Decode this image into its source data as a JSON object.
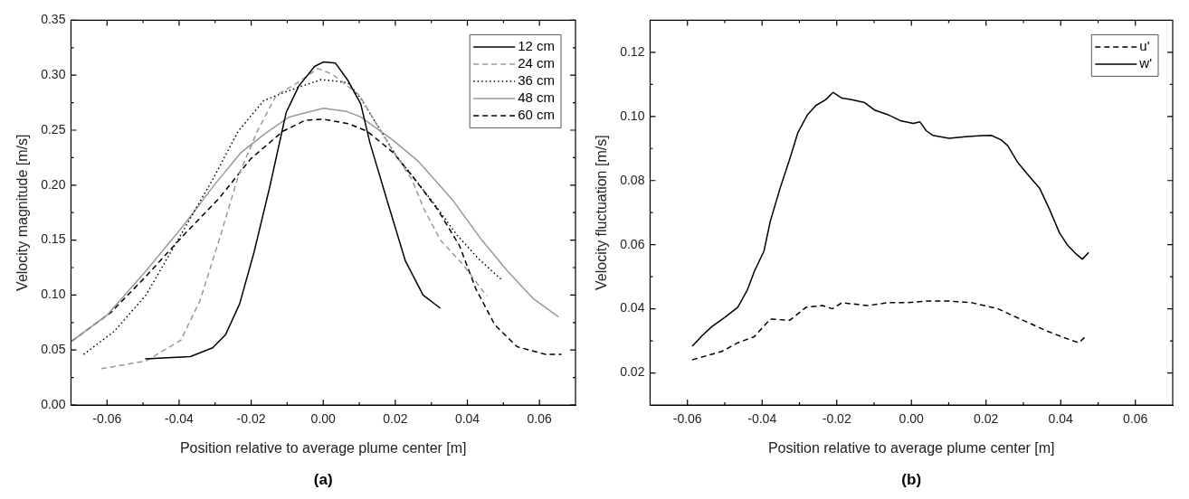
{
  "chart_data": [
    {
      "type": "line",
      "xlabel": "Position relative to average plume center [m]",
      "ylabel": "Velocity magnitude [m/s]",
      "annotations": [
        "(a)"
      ],
      "legend": "top right",
      "grid": false,
      "xlim": [
        -0.07,
        0.07
      ],
      "ylim": [
        0,
        0.35
      ],
      "xticks": [
        {
          "value": -0.06,
          "label": "-0.06"
        },
        {
          "value": -0.05,
          "label": null
        },
        {
          "value": -0.04,
          "label": "-0.04"
        },
        {
          "value": -0.03,
          "label": null
        },
        {
          "value": -0.02,
          "label": "-0.02"
        },
        {
          "value": -0.01,
          "label": null
        },
        {
          "value": 0,
          "label": "0.00"
        },
        {
          "value": 0.01,
          "label": null
        },
        {
          "value": 0.02,
          "label": "0.02"
        },
        {
          "value": 0.03,
          "label": null
        },
        {
          "value": 0.04,
          "label": "0.04"
        },
        {
          "value": 0.05,
          "label": null
        },
        {
          "value": 0.06,
          "label": "0.06"
        }
      ],
      "yticks": [
        {
          "value": 0,
          "label": "0.00"
        },
        {
          "value": 0.025,
          "label": null
        },
        {
          "value": 0.05,
          "label": "0.05"
        },
        {
          "value": 0.075,
          "label": null
        },
        {
          "value": 0.1,
          "label": "0.10"
        },
        {
          "value": 0.125,
          "label": null
        },
        {
          "value": 0.15,
          "label": "0.15"
        },
        {
          "value": 0.175,
          "label": null
        },
        {
          "value": 0.2,
          "label": "0.20"
        },
        {
          "value": 0.225,
          "label": null
        },
        {
          "value": 0.25,
          "label": "0.25"
        },
        {
          "value": 0.275,
          "label": null
        },
        {
          "value": 0.3,
          "label": "0.30"
        },
        {
          "value": 0.325,
          "label": null
        },
        {
          "value": 0.35,
          "label": "0.35"
        }
      ],
      "series": [
        {
          "name": "12 cm",
          "color": "#000000",
          "line_style": "solid",
          "x": [
            -0.0494,
            -0.0369,
            -0.0307,
            -0.0271,
            -0.0232,
            -0.0192,
            -0.0148,
            -0.0103,
            -0.0068,
            -0.0024,
            0,
            0.0034,
            0.0069,
            0.0104,
            0.013,
            0.018,
            0.0228,
            0.0277,
            0.0325
          ],
          "values": [
            0.042,
            0.044,
            0.052,
            0.064,
            0.092,
            0.139,
            0.199,
            0.266,
            0.29,
            0.308,
            0.312,
            0.311,
            0.295,
            0.274,
            0.238,
            0.183,
            0.131,
            0.1,
            0.088
          ]
        },
        {
          "name": "24 cm",
          "color": "#999999",
          "line_style": "dashed",
          "x": [
            -0.0616,
            -0.0492,
            -0.0395,
            -0.0342,
            -0.0289,
            -0.0236,
            -0.0183,
            -0.013,
            -0.0077,
            -0.0015,
            0.0025,
            0.01,
            0.0149,
            0.0202,
            0.0246,
            0.028,
            0.0325,
            0.0387,
            0.0454
          ],
          "values": [
            0.033,
            0.04,
            0.059,
            0.095,
            0.15,
            0.208,
            0.249,
            0.282,
            0.292,
            0.306,
            0.301,
            0.282,
            0.255,
            0.227,
            0.205,
            0.178,
            0.15,
            0.128,
            0.099
          ]
        },
        {
          "name": "36 cm",
          "color": "#000000",
          "line_style": "dotted",
          "x": [
            -0.0665,
            -0.058,
            -0.0492,
            -0.0395,
            -0.0307,
            -0.0236,
            -0.0165,
            -0.0095,
            -0.0006,
            0.0025,
            0.0069,
            0.0104,
            0.0149,
            0.0202,
            0.0255,
            0.0308,
            0.037,
            0.0431,
            0.0498
          ],
          "values": [
            0.046,
            0.067,
            0.1,
            0.155,
            0.205,
            0.249,
            0.277,
            0.286,
            0.296,
            0.295,
            0.293,
            0.279,
            0.255,
            0.227,
            0.205,
            0.183,
            0.155,
            0.133,
            0.113
          ]
        },
        {
          "name": "48 cm",
          "color": "#999999",
          "line_style": "solid",
          "x": [
            -0.0698,
            -0.0599,
            -0.0492,
            -0.0386,
            -0.0298,
            -0.0227,
            -0.0165,
            -0.0095,
            0,
            0.0065,
            0.0104,
            0.0193,
            0.0263,
            0.036,
            0.044,
            0.0511,
            0.0582,
            0.0653
          ],
          "values": [
            0.058,
            0.082,
            0.122,
            0.164,
            0.202,
            0.23,
            0.246,
            0.262,
            0.27,
            0.267,
            0.262,
            0.241,
            0.222,
            0.186,
            0.15,
            0.122,
            0.097,
            0.08
          ]
        },
        {
          "name": "60 cm",
          "color": "#000000",
          "line_style": "dashed",
          "x": [
            -0.0698,
            -0.059,
            -0.0492,
            -0.0386,
            -0.0289,
            -0.0201,
            -0.0112,
            -0.005,
            0,
            0.0069,
            0.0122,
            0.0193,
            0.0255,
            0.0317,
            0.0378,
            0.0423,
            0.0476,
            0.0538,
            0.0617,
            0.0661
          ],
          "values": [
            0.058,
            0.084,
            0.117,
            0.155,
            0.188,
            0.224,
            0.249,
            0.259,
            0.26,
            0.256,
            0.249,
            0.23,
            0.205,
            0.178,
            0.145,
            0.106,
            0.073,
            0.053,
            0.046,
            0.046
          ]
        }
      ]
    },
    {
      "type": "line",
      "xlabel": "Position relative to average plume center [m]",
      "ylabel": "Velocity fluctuation [m/s]",
      "annotations": [
        "(b)"
      ],
      "legend": "top right",
      "grid": false,
      "xlim": [
        -0.07,
        0.07
      ],
      "ylim": [
        0.01,
        0.13
      ],
      "xticks": [
        {
          "value": -0.06,
          "label": "-0.06"
        },
        {
          "value": -0.05,
          "label": null
        },
        {
          "value": -0.04,
          "label": "-0.04"
        },
        {
          "value": -0.03,
          "label": null
        },
        {
          "value": -0.02,
          "label": "-0.02"
        },
        {
          "value": -0.01,
          "label": null
        },
        {
          "value": 0,
          "label": "0.00"
        },
        {
          "value": 0.01,
          "label": null
        },
        {
          "value": 0.02,
          "label": "0.02"
        },
        {
          "value": 0.03,
          "label": null
        },
        {
          "value": 0.04,
          "label": "0.04"
        },
        {
          "value": 0.05,
          "label": null
        },
        {
          "value": 0.06,
          "label": "0.06"
        }
      ],
      "yticks": [
        {
          "value": 0.02,
          "label": "0.02"
        },
        {
          "value": 0.03,
          "label": null
        },
        {
          "value": 0.04,
          "label": "0.04"
        },
        {
          "value": 0.05,
          "label": null
        },
        {
          "value": 0.06,
          "label": "0.06"
        },
        {
          "value": 0.07,
          "label": null
        },
        {
          "value": 0.08,
          "label": "0.08"
        },
        {
          "value": 0.09,
          "label": null
        },
        {
          "value": 0.1,
          "label": "0.10"
        },
        {
          "value": 0.11,
          "label": null
        },
        {
          "value": 0.12,
          "label": "0.12"
        }
      ],
      "series": [
        {
          "name": "u'",
          "color": "#000000",
          "line_style": "dashed",
          "x": [
            -0.0587,
            -0.0508,
            -0.0465,
            -0.0421,
            -0.0378,
            -0.0326,
            -0.0282,
            -0.0238,
            -0.0212,
            -0.0186,
            -0.0117,
            -0.0064,
            -0.0012,
            0.004,
            0.0101,
            0.0162,
            0.0232,
            0.0292,
            0.0362,
            0.0414,
            0.0449,
            0.0466
          ],
          "values": [
            0.0241,
            0.0267,
            0.0294,
            0.0313,
            0.0368,
            0.0364,
            0.0405,
            0.041,
            0.04,
            0.0419,
            0.041,
            0.0419,
            0.0419,
            0.0424,
            0.0424,
            0.0419,
            0.04,
            0.0368,
            0.0331,
            0.0308,
            0.0294,
            0.0313
          ]
        },
        {
          "name": "w'",
          "color": "#000000",
          "line_style": "solid",
          "x": [
            -0.0587,
            -0.056,
            -0.0534,
            -0.05,
            -0.0465,
            -0.0439,
            -0.0421,
            -0.0395,
            -0.0378,
            -0.0352,
            -0.0326,
            -0.0304,
            -0.0278,
            -0.0256,
            -0.023,
            -0.021,
            -0.0186,
            -0.016,
            -0.0125,
            -0.0099,
            -0.0064,
            -0.003,
            0.0005,
            0.0023,
            0.004,
            0.0057,
            0.0101,
            0.0144,
            0.0188,
            0.0214,
            0.024,
            0.0258,
            0.0284,
            0.031,
            0.0344,
            0.037,
            0.0397,
            0.0418,
            0.044,
            0.0458,
            0.0475
          ],
          "values": [
            0.0283,
            0.0317,
            0.0345,
            0.0373,
            0.0405,
            0.046,
            0.0516,
            0.058,
            0.0673,
            0.0775,
            0.0867,
            0.095,
            0.1006,
            0.1034,
            0.1052,
            0.1075,
            0.1057,
            0.1052,
            0.1043,
            0.102,
            0.1006,
            0.0987,
            0.0978,
            0.0983,
            0.0955,
            0.0941,
            0.0932,
            0.0937,
            0.094,
            0.0941,
            0.0927,
            0.0909,
            0.0858,
            0.0821,
            0.0775,
            0.071,
            0.0636,
            0.0599,
            0.0572,
            0.0555,
            0.0576
          ]
        }
      ]
    }
  ]
}
